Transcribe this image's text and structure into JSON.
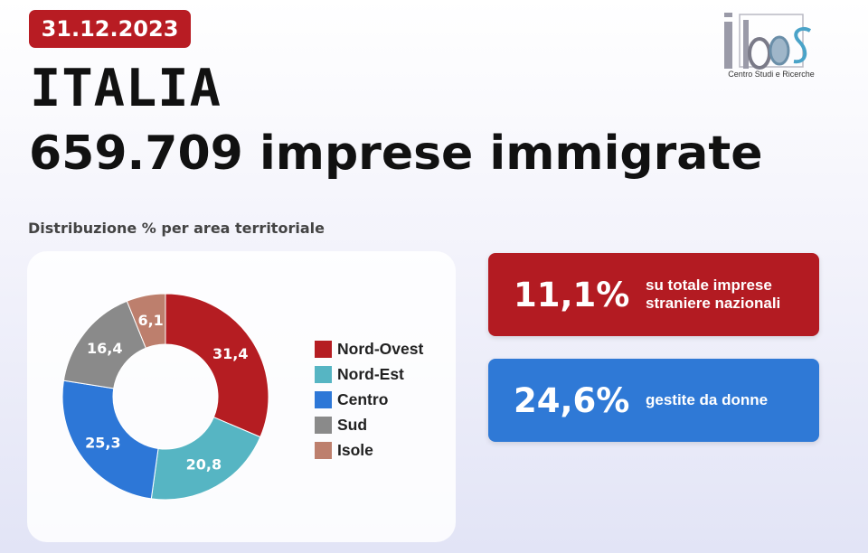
{
  "header": {
    "date": "31.12.2023",
    "country": "ITALIA",
    "headline": "659.709 imprese immigrate",
    "logo": {
      "text": "idos",
      "caption": "Centro Studi e Ricerche"
    }
  },
  "colors": {
    "date_badge": "#b81c23",
    "red_card": "#b31b22",
    "blue_card": "#2f79d6",
    "nord_ovest": "#b51d22",
    "nord_est": "#56b5c3",
    "centro": "#2d77d7",
    "sud": "#8a8a8a",
    "isole": "#bd7f6d"
  },
  "chart_data": {
    "type": "pie",
    "donut": true,
    "title": "Distribuzione % per area territoriale",
    "legend_position": "right",
    "categories": [
      "Nord-Ovest",
      "Nord-Est",
      "Centro",
      "Sud",
      "Isole"
    ],
    "values": [
      31.4,
      20.8,
      25.3,
      16.4,
      6.1
    ],
    "labels": [
      "31,4",
      "20,8",
      "25,3",
      "16,4",
      "6,1"
    ],
    "colors": [
      "#b51d22",
      "#56b5c3",
      "#2d77d7",
      "#8a8a8a",
      "#bd7f6d"
    ]
  },
  "stats": [
    {
      "value": "11,1%",
      "description": "su totale imprese straniere nazionali"
    },
    {
      "value": "24,6%",
      "description": "gestite da donne"
    }
  ]
}
